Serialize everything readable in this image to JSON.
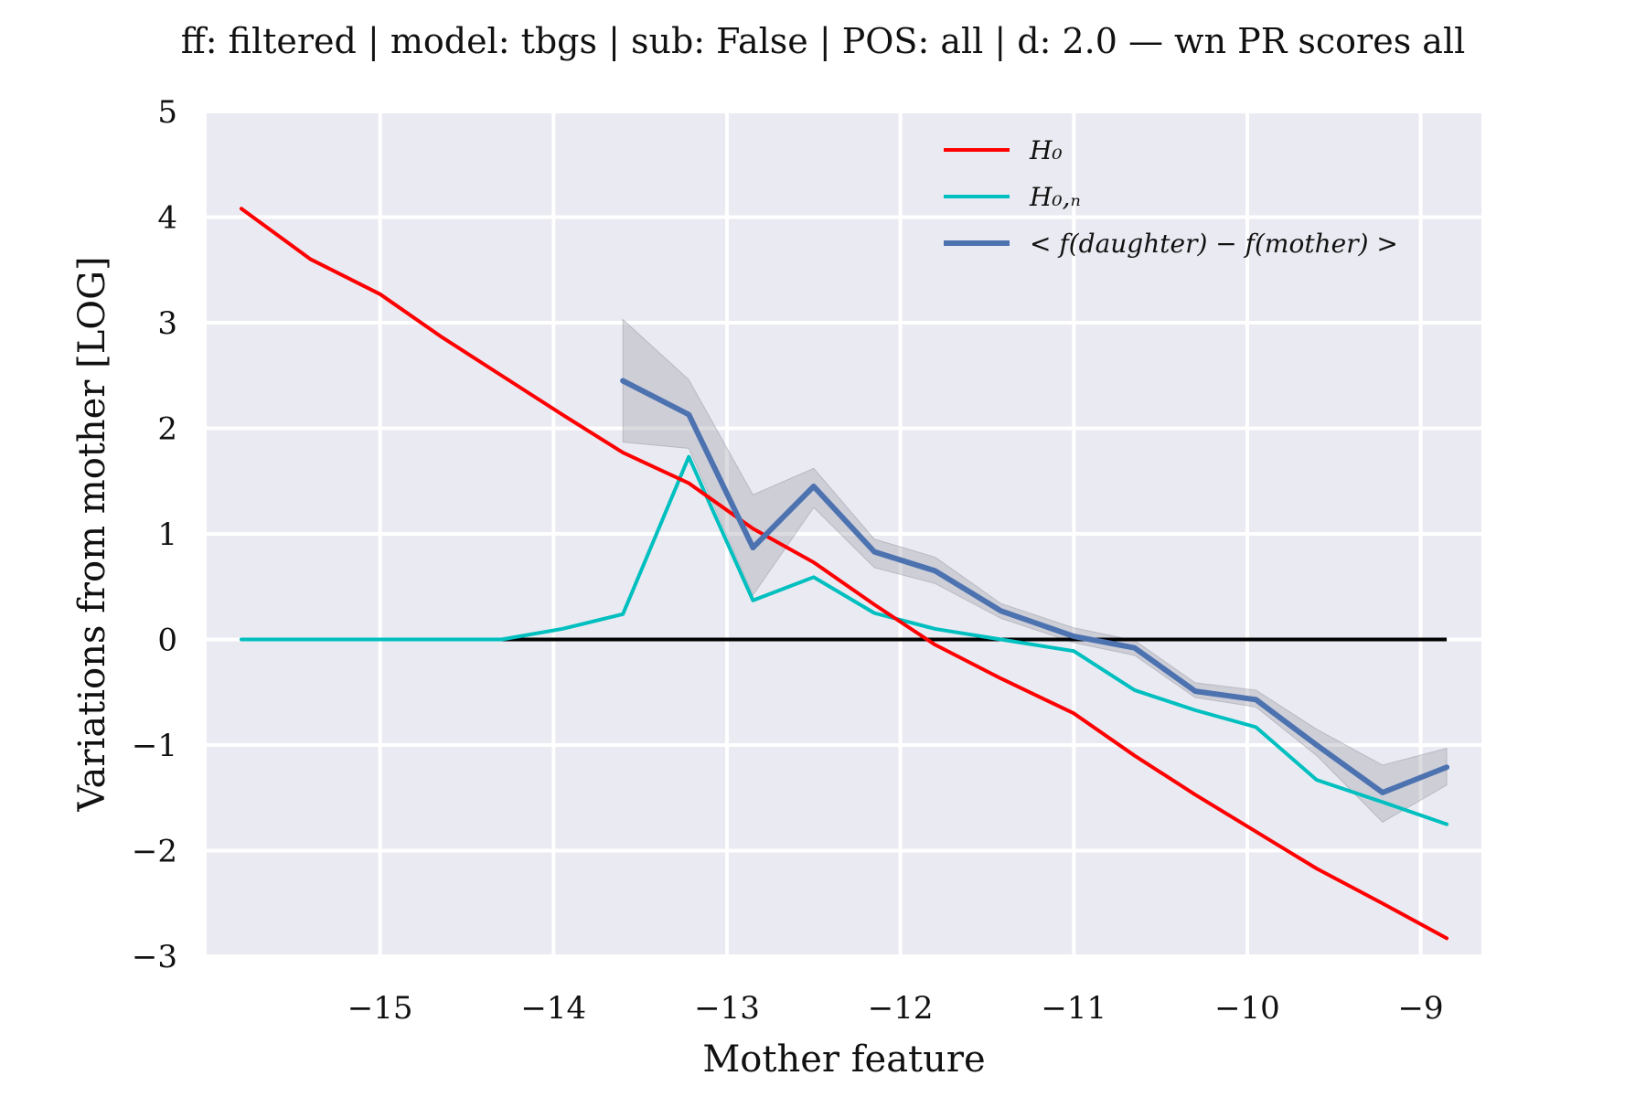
{
  "chart_data": {
    "type": "line",
    "title": "ff: filtered | model: tbgs | sub: False | POS: all | d: 2.0 — wn PR scores all",
    "xlabel": "Mother feature",
    "ylabel": "Variations from mother [LOG]",
    "xlim": [
      -16.0,
      -8.65
    ],
    "ylim": [
      -3,
      5
    ],
    "xticks": [
      -15,
      -14,
      -13,
      -12,
      -11,
      -10,
      -9
    ],
    "xtick_labels": [
      "−15",
      "−14",
      "−13",
      "−12",
      "−11",
      "−10",
      "−9"
    ],
    "yticks": [
      -3,
      -2,
      -1,
      0,
      1,
      2,
      3,
      4,
      5
    ],
    "ytick_labels": [
      "−3",
      "−2",
      "−1",
      "0",
      "1",
      "2",
      "3",
      "4",
      "5"
    ],
    "grid": true,
    "legend_position": "top-right",
    "series": [
      {
        "name": "H_0",
        "legend_label": "H₀",
        "color": "#ff0000",
        "x": [
          -15.8,
          -15.4,
          -15.0,
          -14.65,
          -14.3,
          -13.95,
          -13.6,
          -13.22,
          -12.85,
          -12.5,
          -12.15,
          -11.8,
          -11.42,
          -11.0,
          -10.65,
          -10.3,
          -9.95,
          -9.6,
          -9.22,
          -8.85
        ],
        "values": [
          4.08,
          3.6,
          3.27,
          2.87,
          2.5,
          2.13,
          1.77,
          1.48,
          1.05,
          0.73,
          0.33,
          -0.05,
          -0.37,
          -0.7,
          -1.1,
          -1.47,
          -1.82,
          -2.17,
          -2.5,
          -2.83
        ]
      },
      {
        "name": "H_{0,n}",
        "legend_label": "H₀,ₙ",
        "color": "#00bfbf",
        "x": [
          -15.8,
          -15.4,
          -15.0,
          -14.65,
          -14.3,
          -13.95,
          -13.6,
          -13.22,
          -12.85,
          -12.5,
          -12.15,
          -11.8,
          -11.42,
          -11.0,
          -10.65,
          -10.3,
          -9.95,
          -9.6,
          -9.22,
          -8.85
        ],
        "values": [
          0.0,
          0.0,
          0.0,
          0.0,
          0.0,
          0.1,
          0.24,
          1.73,
          0.37,
          0.59,
          0.25,
          0.1,
          0.0,
          -0.11,
          -0.48,
          -0.67,
          -0.83,
          -1.33,
          -1.54,
          -1.75
        ]
      },
      {
        "name": "< f(daughter) - f(mother) >",
        "legend_label": "< f(daughter) − f(mother) >",
        "color": "#4c72b0",
        "x": [
          -13.6,
          -13.22,
          -12.85,
          -12.5,
          -12.15,
          -11.8,
          -11.42,
          -11.0,
          -10.65,
          -10.3,
          -9.95,
          -9.6,
          -9.22,
          -8.85
        ],
        "values": [
          2.45,
          2.13,
          0.87,
          1.45,
          0.83,
          0.65,
          0.27,
          0.03,
          -0.08,
          -0.49,
          -0.57,
          -1.0,
          -1.45,
          -1.21
        ],
        "band_low": [
          1.87,
          1.81,
          0.42,
          1.25,
          0.68,
          0.53,
          0.2,
          -0.03,
          -0.15,
          -0.55,
          -0.64,
          -1.1,
          -1.73,
          -1.38
        ],
        "band_high": [
          3.03,
          2.46,
          1.37,
          1.62,
          0.95,
          0.78,
          0.34,
          0.11,
          -0.01,
          -0.41,
          -0.48,
          -0.85,
          -1.19,
          -1.03
        ]
      }
    ],
    "reference_line": {
      "y": 0,
      "color": "#000000"
    },
    "colors": {
      "plot_bg": "#eaeaf2",
      "grid": "#ffffff",
      "band": "#9a9aa6"
    }
  }
}
